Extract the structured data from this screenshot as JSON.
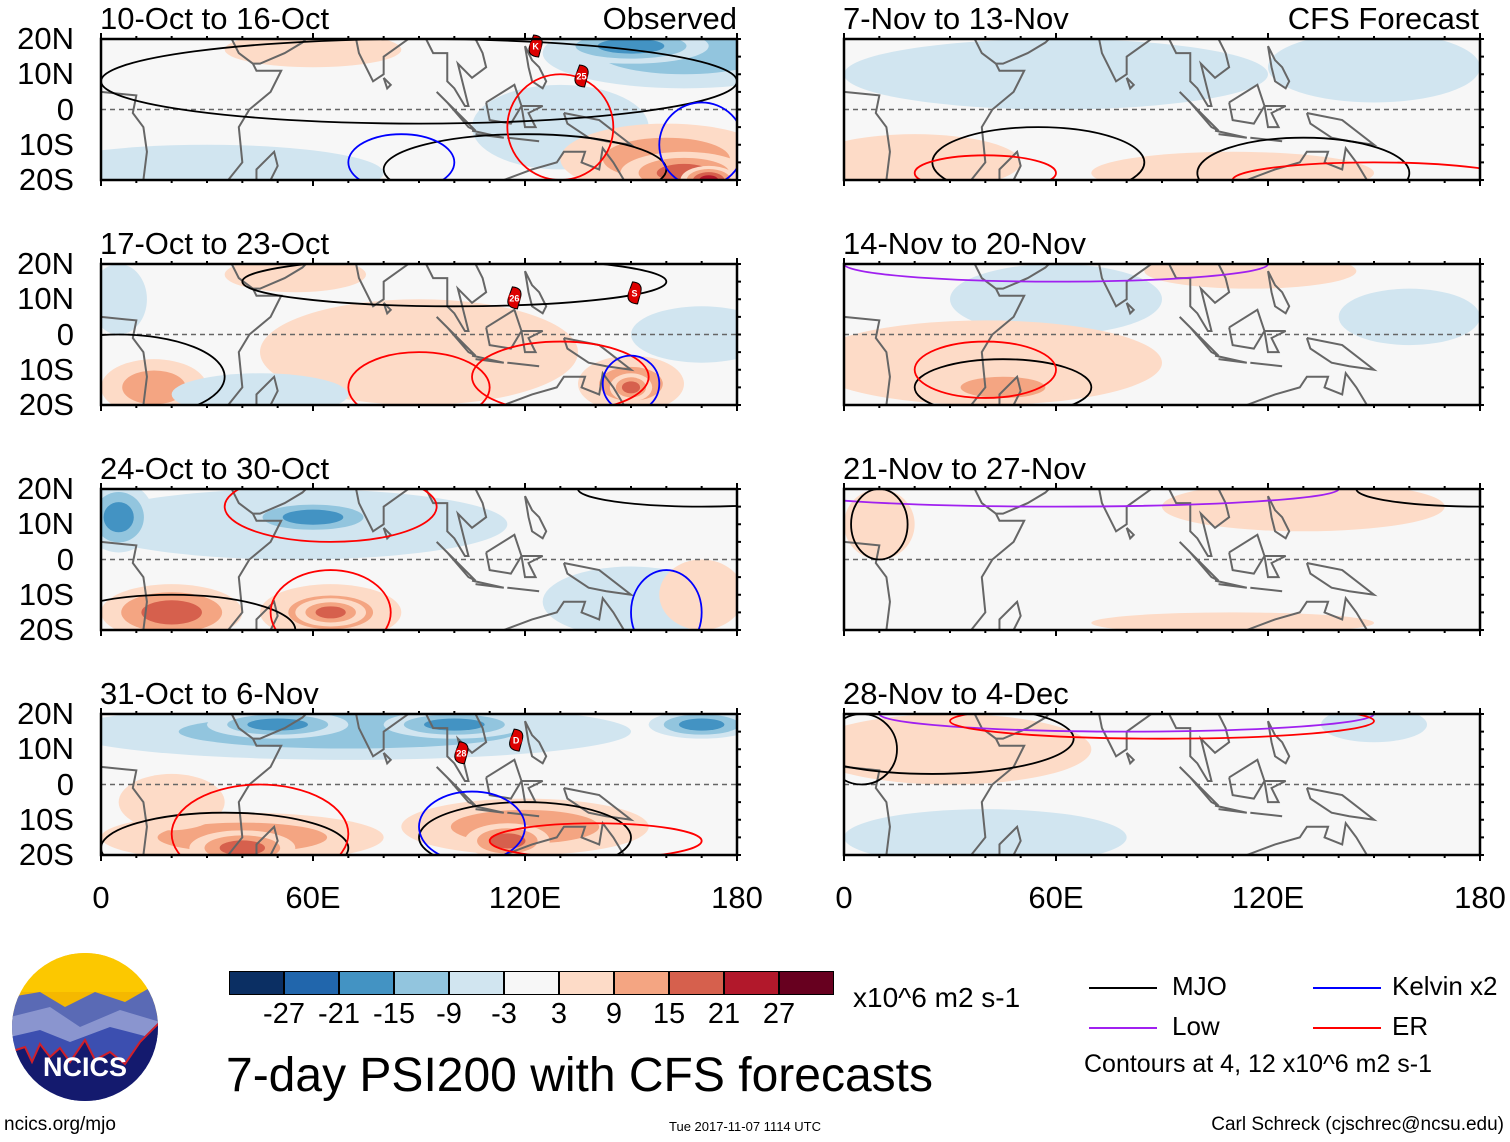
{
  "title": "7-day PSI200 with CFS forecasts",
  "columns": [
    {
      "label": "Observed"
    },
    {
      "label": "CFS Forecast"
    }
  ],
  "panels": [
    {
      "col": 0,
      "row": 0,
      "title": "10-Oct to 16-Oct",
      "storms": [
        {
          "id": "K",
          "lon": 123,
          "lat": 18
        },
        {
          "id": "25",
          "lon": 136,
          "lat": 9.5
        }
      ]
    },
    {
      "col": 0,
      "row": 1,
      "title": "17-Oct to 23-Oct",
      "storms": [
        {
          "id": "26",
          "lon": 117,
          "lat": 10.4
        },
        {
          "id": "S",
          "lon": 151,
          "lat": 11.8
        }
      ]
    },
    {
      "col": 0,
      "row": 2,
      "title": "24-Oct to 30-Oct",
      "storms": []
    },
    {
      "col": 0,
      "row": 3,
      "title": "31-Oct to 6-Nov",
      "storms": [
        {
          "id": "28",
          "lon": 102,
          "lat": 9
        },
        {
          "id": "D",
          "lon": 117.5,
          "lat": 12.6
        }
      ]
    },
    {
      "col": 1,
      "row": 0,
      "title": "7-Nov to 13-Nov",
      "storms": []
    },
    {
      "col": 1,
      "row": 1,
      "title": "14-Nov to 20-Nov",
      "storms": []
    },
    {
      "col": 1,
      "row": 2,
      "title": "21-Nov to 27-Nov",
      "storms": []
    },
    {
      "col": 1,
      "row": 3,
      "title": "28-Nov to 4-Dec",
      "storms": []
    }
  ],
  "y_ticks": [
    "20N",
    "10N",
    "0",
    "10S",
    "20S"
  ],
  "x_ticks": [
    "0",
    "60E",
    "120E",
    "180"
  ],
  "colorbar": {
    "colors": [
      "#0b2f63",
      "#2166ac",
      "#4393c3",
      "#92c5de",
      "#d1e5f0",
      "#f7f7f7",
      "#fddbc7",
      "#f4a582",
      "#d6604d",
      "#b2182b",
      "#67001f"
    ],
    "labels": [
      "-27",
      "-21",
      "-15",
      "-9",
      "-3",
      "3",
      "9",
      "15",
      "21",
      "27"
    ],
    "units": "x10^6 m2 s-1"
  },
  "legend": {
    "items": [
      {
        "label": "MJO",
        "color": "#000000"
      },
      {
        "label": "Kelvin x2",
        "color": "#0000ff"
      },
      {
        "label": "Low",
        "color": "#a020f0"
      },
      {
        "label": "ER",
        "color": "#ff0000"
      }
    ],
    "note": "Contours at 4, 12 x10^6 m2 s-1"
  },
  "logo": {
    "text": "NCICS"
  },
  "footer": {
    "url": "ncics.org/mjo",
    "timestamp": "Tue 2017-11-07 1114 UTC",
    "credit": "Carl Schreck (cjschrec@ncsu.edu)"
  }
}
